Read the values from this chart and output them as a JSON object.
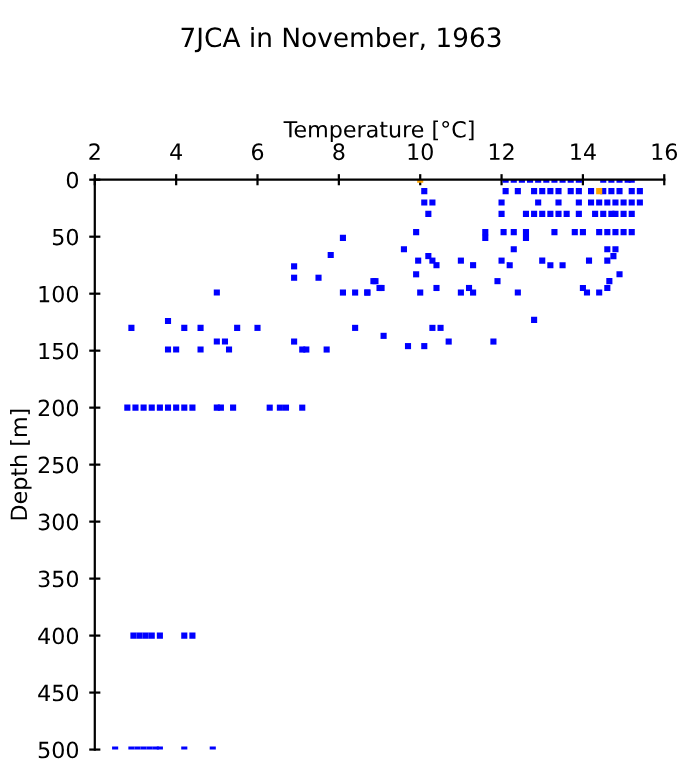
{
  "chart_data": {
    "type": "scatter",
    "title": "7JCA in November, 1963",
    "xlabel": "Temperature [°C]",
    "ylabel": "Depth [m]",
    "xlim": [
      2,
      16
    ],
    "xticks": [
      2,
      4,
      6,
      8,
      10,
      12,
      14,
      16
    ],
    "ylim": [
      500,
      0
    ],
    "yticks": [
      0,
      50,
      100,
      150,
      200,
      250,
      300,
      350,
      400,
      450,
      500
    ],
    "grid": false,
    "legend": false,
    "marker": "square",
    "series": [
      {
        "color": "#0000ff",
        "x": [
          12.1,
          12.3,
          12.5,
          12.7,
          12.9,
          13.1,
          13.3,
          13.5,
          13.7,
          13.9,
          14.5,
          14.7,
          14.9,
          15.1,
          15.2,
          10.1,
          12.1,
          12.4,
          12.8,
          13.0,
          13.2,
          13.4,
          13.7,
          13.9,
          14.2,
          14.5,
          14.7,
          14.9,
          15.2,
          15.4,
          10.1,
          10.3,
          12.0,
          12.9,
          13.4,
          13.9,
          14.2,
          14.4,
          14.6,
          14.8,
          15.0,
          15.2,
          15.4,
          10.2,
          12.0,
          12.6,
          12.8,
          13.0,
          13.2,
          13.4,
          13.6,
          13.9,
          14.3,
          14.5,
          14.7,
          14.8,
          15.0,
          15.2,
          9.9,
          11.6,
          12.05,
          12.3,
          12.6,
          13.3,
          13.8,
          14.0,
          14.4,
          14.6,
          14.8,
          15.0,
          15.2,
          11.6,
          12.6,
          8.1,
          9.6,
          12.3,
          14.6,
          14.8,
          10.2,
          14.75,
          7.8,
          9.95,
          10.3,
          11.0,
          12.0,
          13.0,
          14.15,
          14.6,
          10.4,
          11.3,
          12.2,
          13.2,
          13.5,
          6.9,
          9.9,
          14.9,
          6.9,
          7.5,
          8.85,
          11.9,
          14.65,
          8.9,
          9.05,
          10.4,
          11.2,
          14.0,
          14.6,
          9.0,
          8.7,
          10.0,
          11.0,
          11.3,
          12.4,
          14.1,
          14.4,
          5.0,
          8.1,
          8.4,
          8.7,
          12.8,
          3.8,
          10.3,
          10.5,
          2.9,
          4.2,
          4.6,
          5.5,
          6.0,
          8.4,
          9.1,
          10.7,
          11.8,
          5.0,
          5.2,
          6.9,
          9.7,
          10.1,
          3.8,
          4.0,
          4.6,
          5.3,
          7.1,
          7.2,
          7.7,
          2.8,
          3.0,
          3.2,
          3.4,
          3.6,
          3.8,
          4.0,
          4.2,
          4.4,
          5.0,
          5.1,
          5.4,
          6.3,
          6.55,
          6.7,
          7.1,
          2.95,
          3.1,
          3.25,
          3.4,
          3.6,
          4.2,
          4.4,
          2.5,
          2.9,
          3.05,
          3.2,
          3.35,
          3.5,
          3.6,
          4.2,
          4.9
        ],
        "values": [
          0,
          0,
          0,
          0,
          0,
          0,
          0,
          0,
          0,
          0,
          0,
          0,
          0,
          0,
          0,
          10,
          10,
          10,
          10,
          10,
          10,
          10,
          10,
          10,
          10,
          10,
          10,
          10,
          10,
          10,
          20,
          20,
          20,
          20,
          20,
          20,
          20,
          20,
          20,
          20,
          20,
          20,
          20,
          30,
          30,
          30,
          30,
          30,
          30,
          30,
          30,
          30,
          30,
          30,
          30,
          30,
          30,
          30,
          46,
          46,
          46,
          46,
          46,
          46,
          46,
          46,
          46,
          46,
          46,
          46,
          46,
          51,
          51,
          51,
          61,
          61,
          61,
          61,
          67,
          67,
          66,
          71,
          71,
          71,
          71,
          71,
          71,
          71,
          75,
          75,
          75,
          75,
          75,
          76,
          83,
          83,
          86,
          86,
          89,
          89,
          89,
          89,
          95,
          95,
          95,
          95,
          95,
          95,
          99,
          99,
          99,
          99,
          99,
          99,
          99,
          99,
          99,
          99,
          99,
          123,
          124,
          130,
          130,
          130,
          130,
          130,
          130,
          130,
          130,
          137,
          142,
          142,
          142,
          142,
          142,
          146,
          146,
          149,
          149,
          149,
          149,
          149,
          149,
          149,
          200,
          200,
          200,
          200,
          200,
          200,
          200,
          200,
          200,
          200,
          200,
          200,
          200,
          200,
          200,
          200,
          400,
          400,
          400,
          400,
          400,
          400,
          400,
          500,
          500,
          500,
          500,
          500,
          500,
          500,
          500,
          500
        ]
      },
      {
        "color": "#ffa500",
        "x": [
          10.0,
          14.4
        ],
        "values": [
          0,
          10
        ]
      }
    ]
  }
}
